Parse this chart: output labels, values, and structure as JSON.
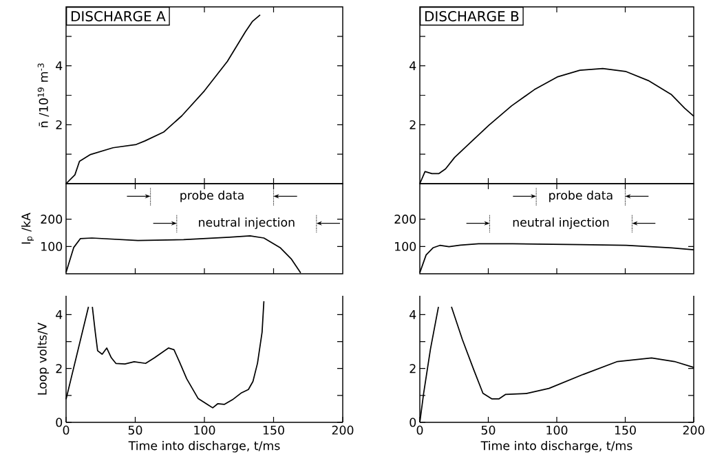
{
  "chart_data": [
    {
      "type": "line",
      "title": "DISCHARGE A",
      "ylabel": "n̄ /10$^{19}$ m$^{-3}$",
      "x": [
        0,
        6.4,
        9.7,
        17.7,
        34,
        50.7,
        57,
        70.5,
        83.6,
        100,
        116.6,
        129.7,
        134.6,
        140.3
      ],
      "values": [
        0,
        0.3,
        0.76,
        0.99,
        1.22,
        1.33,
        1.45,
        1.75,
        2.3,
        3.15,
        4.15,
        5.16,
        5.5,
        5.73
      ],
      "xlim": [
        0,
        200
      ],
      "ylim": [
        0,
        6
      ],
      "xticks": [
        {
          "value": 50,
          "label": null
        },
        {
          "value": 100,
          "label": null
        },
        {
          "value": 150,
          "label": null
        }
      ],
      "yticks": [
        {
          "value": 1,
          "label": null
        },
        2,
        {
          "value": 3,
          "label": null
        },
        4,
        {
          "value": 5,
          "label": null
        }
      ],
      "tick_labels": "y"
    },
    {
      "type": "line",
      "title": "DISCHARGE B",
      "x": [
        0,
        3.8,
        8.8,
        13.8,
        18.8,
        25.4,
        37,
        50.4,
        67,
        83.6,
        100.3,
        116.9,
        133.6,
        150.2,
        166.8,
        183.5,
        193.4,
        200
      ],
      "values": [
        0,
        0.41,
        0.34,
        0.34,
        0.5,
        0.89,
        1.4,
        1.98,
        2.64,
        3.19,
        3.62,
        3.85,
        3.91,
        3.81,
        3.5,
        3.03,
        2.56,
        2.29
      ],
      "xlim": [
        0,
        200
      ],
      "ylim": [
        0,
        6
      ],
      "xticks": [
        {
          "value": 50,
          "label": null
        },
        {
          "value": 100,
          "label": null
        },
        {
          "value": 150,
          "label": null
        }
      ],
      "yticks": [
        {
          "value": 1,
          "label": null
        },
        2,
        {
          "value": 3,
          "label": null
        },
        4,
        {
          "value": 5,
          "label": null
        }
      ],
      "tick_labels": "y"
    },
    {
      "type": "line",
      "ylabel": "I$_{p}$ /kA",
      "x": [
        0,
        5.5,
        10.4,
        18.7,
        51.9,
        85,
        118,
        133,
        143,
        154.7,
        163,
        169.6
      ],
      "values": [
        5,
        96,
        129,
        131,
        122,
        125,
        134,
        139,
        131,
        96,
        53,
        3
      ],
      "xlim": [
        0,
        200
      ],
      "ylim": [
        0,
        330
      ],
      "xticks": [
        {
          "value": 50,
          "label": null
        },
        {
          "value": 100,
          "label": null
        },
        {
          "value": 150,
          "label": null
        }
      ],
      "yticks": [
        100,
        200
      ],
      "tick_labels": "y",
      "ref_lines": [
        {
          "axis": "x",
          "value": 61,
          "label": "probe data",
          "line_style": "dotted"
        },
        {
          "axis": "x",
          "value": 150,
          "line_style": "dotted"
        },
        {
          "axis": "x",
          "value": 80,
          "label": "neutral injection",
          "line_style": "dotted"
        },
        {
          "axis": "x",
          "value": 181,
          "line_style": "dotted"
        }
      ]
    },
    {
      "type": "line",
      "x": [
        0,
        4.6,
        9.6,
        14.6,
        21.3,
        29.6,
        42.9,
        67.7,
        117.5,
        150.7,
        184,
        200
      ],
      "values": [
        4,
        69,
        95,
        104,
        99,
        105,
        110,
        110,
        107,
        104,
        95,
        88
      ],
      "xlim": [
        0,
        200
      ],
      "ylim": [
        0,
        330
      ],
      "xticks": [
        {
          "value": 50,
          "label": null
        },
        {
          "value": 100,
          "label": null
        },
        {
          "value": 150,
          "label": null
        }
      ],
      "yticks": [
        100,
        200
      ],
      "tick_labels": "y",
      "ref_lines": [
        {
          "axis": "x",
          "value": 85,
          "label": "probe data",
          "line_style": "dotted"
        },
        {
          "axis": "x",
          "value": 150,
          "line_style": "dotted"
        },
        {
          "axis": "x",
          "value": 51,
          "label": "neutral injection",
          "line_style": "dotted"
        },
        {
          "axis": "x",
          "value": 155,
          "line_style": "dotted"
        }
      ]
    },
    {
      "type": "line",
      "xlabel": "Time into discharge, t/ms",
      "ylabel": "Loop volts/V",
      "x": [
        0,
        16.2,
        17.6,
        19,
        21.1,
        22.8,
        26.1,
        29.4,
        32.7,
        36,
        42.6,
        49.2,
        57.5,
        64,
        74,
        78,
        82.2,
        87.2,
        95.4,
        102,
        106,
        109.6,
        114.5,
        120.3,
        126.9,
        131.8,
        135.1,
        138.4,
        141.7,
        143
      ],
      "values": [
        0.86,
        4.29,
        null,
        4.29,
        3.35,
        2.66,
        2.53,
        2.76,
        2.4,
        2.19,
        2.17,
        2.25,
        2.19,
        2.4,
        2.76,
        2.7,
        2.22,
        1.62,
        0.89,
        0.67,
        0.54,
        0.69,
        0.67,
        0.84,
        1.1,
        1.22,
        1.52,
        2.2,
        3.35,
        4.5
      ],
      "xlim": [
        0,
        200
      ],
      "ylim": [
        0,
        4.7
      ],
      "xticks": [
        0,
        50,
        100,
        150,
        200
      ],
      "yticks": [
        0,
        {
          "value": 1,
          "label": null
        },
        2,
        {
          "value": 3,
          "label": null
        },
        4
      ]
    },
    {
      "type": "line",
      "xlabel": "Time into discharge, t/ms",
      "x": [
        0,
        2.8,
        7.8,
        13.6,
        18,
        23.1,
        31.1,
        39.4,
        46.1,
        52.7,
        57.7,
        62.7,
        77.7,
        94.3,
        119.3,
        144.3,
        169.2,
        185.9,
        200
      ],
      "values": [
        0,
        1.08,
        2.73,
        4.29,
        null,
        4.29,
        3.07,
        1.95,
        1.08,
        0.87,
        0.87,
        1.04,
        1.07,
        1.26,
        1.78,
        2.26,
        2.39,
        2.26,
        2.04
      ],
      "xlim": [
        0,
        200
      ],
      "ylim": [
        0,
        4.7
      ],
      "xticks": [
        0,
        50,
        100,
        150,
        200
      ],
      "yticks": [
        0,
        {
          "value": 1,
          "label": null
        },
        2,
        {
          "value": 3,
          "label": null
        },
        4
      ]
    }
  ]
}
